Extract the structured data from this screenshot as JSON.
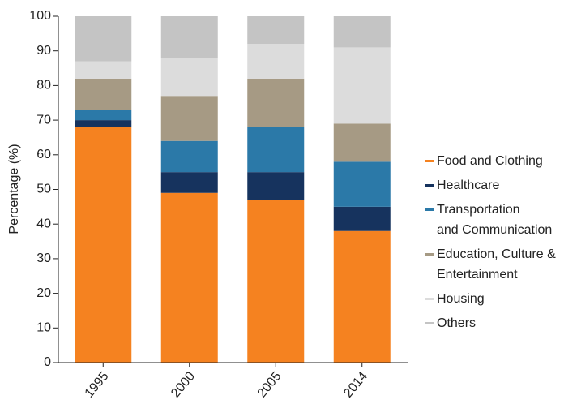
{
  "chart_data": {
    "type": "stacked-bar",
    "y_label": "Percentage (%)",
    "categories": [
      "1995",
      "2000",
      "2005",
      "2014"
    ],
    "series": [
      {
        "name": "Food and Clothing",
        "color": "#f58220",
        "values": [
          68,
          49,
          47,
          38
        ]
      },
      {
        "name": "Healthcare",
        "color": "#16335e",
        "values": [
          2,
          6,
          8,
          7
        ]
      },
      {
        "name": "Transportation\nand Communication",
        "color": "#2b79a8",
        "values": [
          3,
          9,
          13,
          13
        ]
      },
      {
        "name": "Education, Culture &\nEntertainment",
        "color": "#a69a84",
        "values": [
          9,
          13,
          14,
          11
        ]
      },
      {
        "name": "Housing",
        "color": "#dcdcdc",
        "values": [
          5,
          11,
          10,
          22
        ]
      },
      {
        "name": "Others",
        "color": "#c4c4c4",
        "values": [
          13,
          12,
          8,
          9
        ]
      }
    ],
    "ylim": [
      0,
      100
    ],
    "yticks": [
      0,
      10,
      20,
      30,
      40,
      50,
      60,
      70,
      80,
      90,
      100
    ],
    "legend": "right"
  }
}
